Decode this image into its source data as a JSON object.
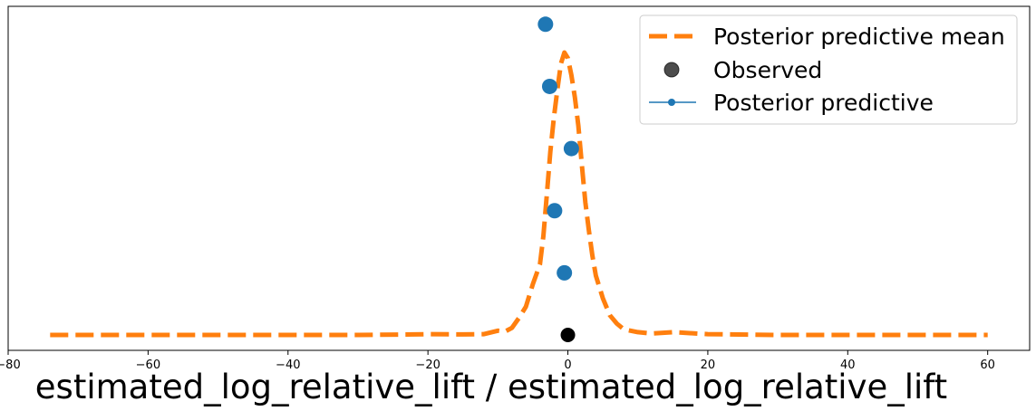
{
  "chart_data": {
    "type": "line",
    "title": "",
    "xlabel": "estimated_log_relative_lift / estimated_log_relative_lift",
    "ylabel": "",
    "xlim": [
      -80,
      66
    ],
    "ylim": [
      0,
      1
    ],
    "x_ticks": [
      -80,
      -60,
      -40,
      -20,
      0,
      20,
      40,
      60
    ],
    "x_tick_labels": [
      "−80",
      "−60",
      "−40",
      "−20",
      "0",
      "20",
      "40",
      "60"
    ],
    "y_ticks_shown": false,
    "grid": false,
    "legend": {
      "placement": "top-right",
      "entries": [
        "Posterior predictive mean",
        "Observed",
        "Posterior predictive"
      ]
    },
    "colors": {
      "posterior_predictive_mean": "#ff7f0e",
      "posterior_predictive": "#1f77b4",
      "observed": "#000000"
    },
    "series": [
      {
        "name": "Posterior predictive mean",
        "style": "dashed",
        "points": [
          [
            -74,
            0.0
          ],
          [
            -60,
            0.0
          ],
          [
            -50,
            0.0
          ],
          [
            -40,
            0.0
          ],
          [
            -30,
            0.0
          ],
          [
            -22,
            0.002
          ],
          [
            -20,
            0.003
          ],
          [
            -15,
            0.002
          ],
          [
            -12,
            0.003
          ],
          [
            -10,
            0.015
          ],
          [
            -9,
            0.012
          ],
          [
            -8,
            0.025
          ],
          [
            -7,
            0.06
          ],
          [
            -6,
            0.1
          ],
          [
            -5,
            0.18
          ],
          [
            -4,
            0.25
          ],
          [
            -3.5,
            0.35
          ],
          [
            -3,
            0.5
          ],
          [
            -2.5,
            0.65
          ],
          [
            -2,
            0.77
          ],
          [
            -1.5,
            0.87
          ],
          [
            -1,
            0.96
          ],
          [
            -0.5,
            1.0
          ],
          [
            0,
            0.98
          ],
          [
            0.5,
            0.92
          ],
          [
            1,
            0.84
          ],
          [
            1.5,
            0.74
          ],
          [
            2,
            0.6
          ],
          [
            2.5,
            0.47
          ],
          [
            3,
            0.37
          ],
          [
            3.5,
            0.28
          ],
          [
            4,
            0.21
          ],
          [
            5,
            0.13
          ],
          [
            6,
            0.07
          ],
          [
            7,
            0.04
          ],
          [
            8,
            0.02
          ],
          [
            10,
            0.01
          ],
          [
            12,
            0.005
          ],
          [
            15,
            0.01
          ],
          [
            20,
            0.003
          ],
          [
            30,
            0.0
          ],
          [
            40,
            0.0
          ],
          [
            50,
            0.0
          ],
          [
            60,
            0.0
          ]
        ]
      },
      {
        "name": "Observed",
        "style": "marker",
        "points": [
          [
            0,
            0
          ]
        ]
      },
      {
        "name": "Posterior predictive",
        "style": "marker",
        "points": [
          [
            -3.2,
            1.1
          ],
          [
            -2.6,
            0.88
          ],
          [
            0.5,
            0.66
          ],
          [
            -1.9,
            0.44
          ],
          [
            -0.5,
            0.22
          ]
        ]
      }
    ]
  }
}
